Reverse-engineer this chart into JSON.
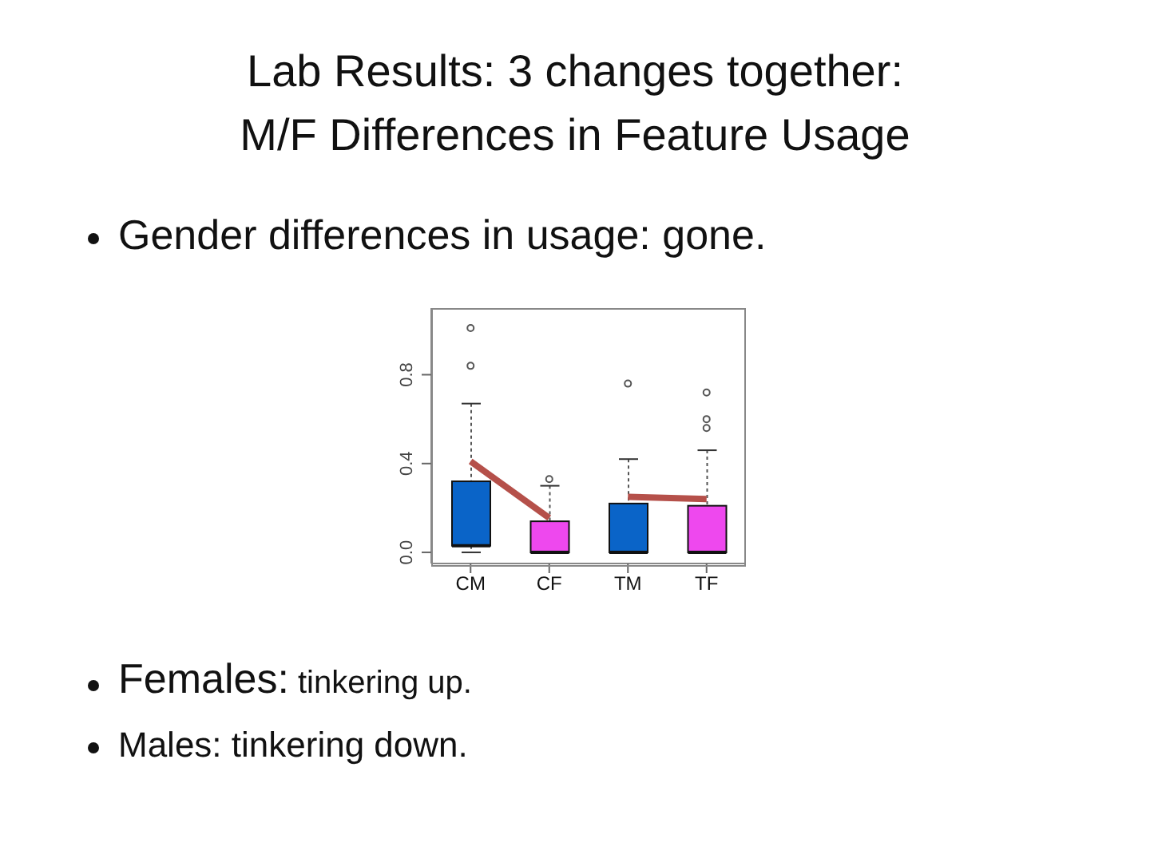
{
  "chart_data": {
    "type": "box",
    "title": "Lab Results: 3 changes together:\nM/F Differences in Feature Usage",
    "subtitle": "Gender differences in usage: gone.",
    "annotations": [
      "Females: tinkering up.",
      "Males: tinkering down."
    ],
    "categories": [
      "CM",
      "CF",
      "TM",
      "TF"
    ],
    "colors": [
      "#0a64c8",
      "#ee48ee",
      "#0a64c8",
      "#ee48ee"
    ],
    "boxes": [
      {
        "low": 0,
        "q1": 0.03,
        "median": 0.03,
        "q3": 0.32,
        "high": 0.67,
        "outliers": [
          0.84,
          1.01
        ]
      },
      {
        "low": 0,
        "q1": 0,
        "median": 0,
        "q3": 0.14,
        "high": 0.3,
        "outliers": [
          0.33
        ]
      },
      {
        "low": 0,
        "q1": 0,
        "median": 0,
        "q3": 0.22,
        "high": 0.42,
        "outliers": [
          0.76
        ]
      },
      {
        "low": 0,
        "q1": 0,
        "median": 0,
        "q3": 0.21,
        "high": 0.46,
        "outliers": [
          0.56,
          0.6,
          0.72
        ]
      }
    ],
    "series": [
      {
        "type": "line",
        "color": "#b5504a",
        "values": [
          0.41,
          0.155,
          null,
          null
        ]
      },
      {
        "type": "line",
        "color": "#b5504a",
        "values": [
          null,
          null,
          0.25,
          0.24
        ]
      }
    ],
    "ylim": [
      -0.05,
      1.1
    ],
    "yticks": [
      {
        "value": 0,
        "label": "0.0"
      },
      {
        "value": 0.4,
        "label": "0.4"
      },
      {
        "value": 0.8,
        "label": "0.8"
      }
    ],
    "grid": false,
    "legend": false,
    "marker": "none"
  }
}
